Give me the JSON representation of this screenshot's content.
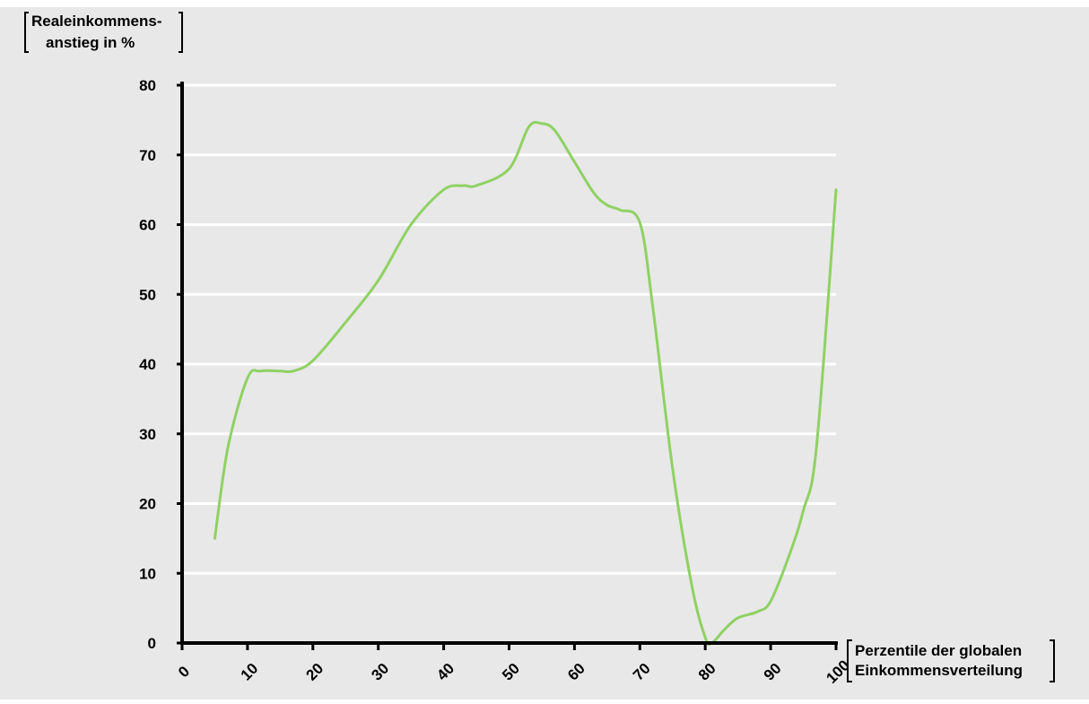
{
  "chart_data": {
    "type": "line",
    "title": "",
    "ylabel_lines": [
      "Realeinkommens-",
      "anstieg in %"
    ],
    "xlabel_lines": [
      "Perzentile der globalen",
      "Einkommensverteilung"
    ],
    "xlim": [
      0,
      100
    ],
    "ylim": [
      0,
      80
    ],
    "x_ticks": [
      "0",
      "10",
      "20",
      "30",
      "40",
      "50",
      "60",
      "70",
      "80",
      "90",
      "100"
    ],
    "y_ticks": [
      "0",
      "10",
      "20",
      "30",
      "40",
      "50",
      "60",
      "70",
      "80"
    ],
    "grid": true,
    "background_color": "#e8e8e8",
    "line_color": "#8fd163",
    "series": [
      {
        "x": [
          5,
          7,
          10,
          12,
          15,
          17,
          20,
          25,
          30,
          35,
          40,
          43,
          45,
          50,
          53,
          55,
          57,
          60,
          63,
          65,
          67,
          70,
          72,
          75,
          78,
          80,
          81,
          83,
          85,
          88,
          90,
          93,
          95,
          97,
          100
        ],
        "values": [
          15,
          28,
          38,
          39,
          39,
          39,
          40.5,
          46,
          52,
          60,
          65,
          65.6,
          65.6,
          68,
          74,
          74.5,
          73.5,
          69,
          64.5,
          62.8,
          62.1,
          60.3,
          48,
          25,
          8,
          0.8,
          0,
          2,
          3.6,
          4.5,
          6,
          13,
          19,
          28,
          65
        ]
      }
    ]
  }
}
